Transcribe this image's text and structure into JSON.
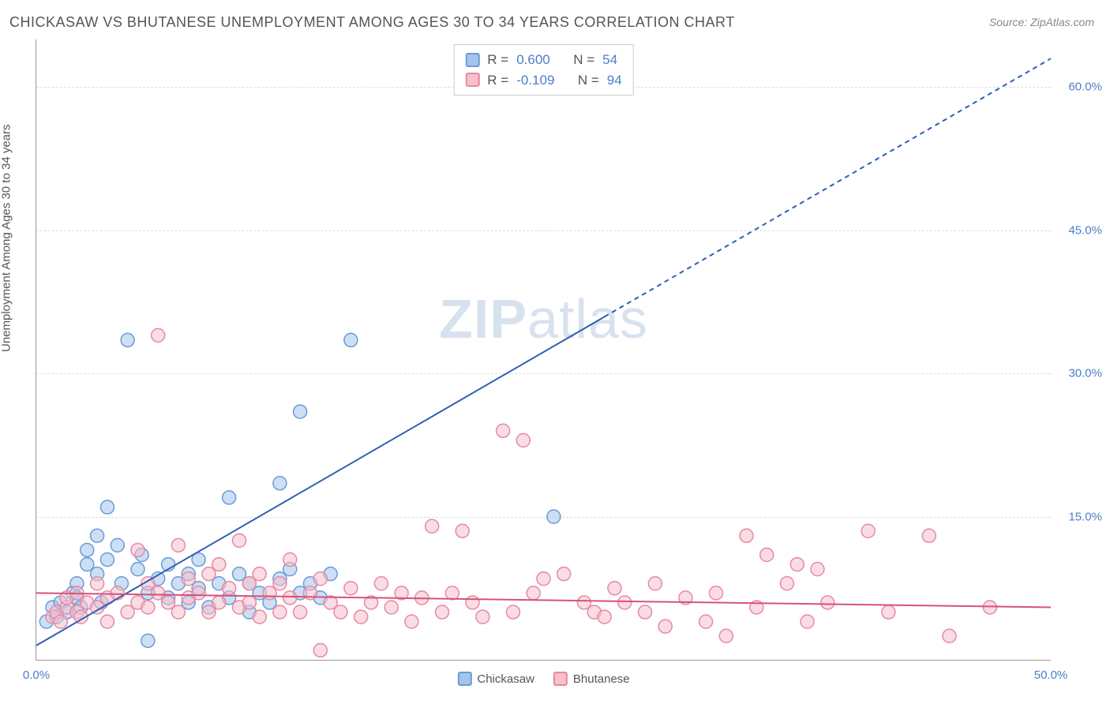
{
  "title": "CHICKASAW VS BHUTANESE UNEMPLOYMENT AMONG AGES 30 TO 34 YEARS CORRELATION CHART",
  "source": "Source: ZipAtlas.com",
  "ylabel": "Unemployment Among Ages 30 to 34 years",
  "watermark_zip": "ZIP",
  "watermark_atlas": "atlas",
  "chart": {
    "type": "scatter",
    "xlim": [
      0,
      50
    ],
    "ylim": [
      0,
      65
    ],
    "xticks": [
      {
        "v": 0,
        "l": "0.0%"
      },
      {
        "v": 50,
        "l": "50.0%"
      }
    ],
    "yticks": [
      {
        "v": 15,
        "l": "15.0%"
      },
      {
        "v": 30,
        "l": "30.0%"
      },
      {
        "v": 45,
        "l": "45.0%"
      },
      {
        "v": 60,
        "l": "60.0%"
      }
    ],
    "grid_color": "#dddddd",
    "marker_radius": 8.5,
    "marker_stroke_width": 1.5,
    "series": [
      {
        "name": "Chickasaw",
        "fill": "#a3c4ec",
        "stroke": "#6a9cd6",
        "fill_opacity": 0.55,
        "R": "0.600",
        "N": "54",
        "trend": {
          "x1": 0,
          "y1": 1.5,
          "x2": 50,
          "y2": 63,
          "solid_until_x": 28,
          "color": "#2e5fb3",
          "width": 2
        },
        "points": [
          [
            0.5,
            4
          ],
          [
            0.8,
            5.5
          ],
          [
            1,
            4.5
          ],
          [
            1.2,
            6
          ],
          [
            1.5,
            5
          ],
          [
            1.8,
            7
          ],
          [
            2,
            6.5
          ],
          [
            2,
            8
          ],
          [
            2.2,
            5.5
          ],
          [
            2.5,
            10
          ],
          [
            2.5,
            11.5
          ],
          [
            3,
            9
          ],
          [
            3,
            13
          ],
          [
            3.2,
            6
          ],
          [
            3.5,
            16
          ],
          [
            3.5,
            10.5
          ],
          [
            4,
            12
          ],
          [
            4.2,
            8
          ],
          [
            4.5,
            33.5
          ],
          [
            5,
            9.5
          ],
          [
            5.2,
            11
          ],
          [
            5.5,
            7
          ],
          [
            5.5,
            2
          ],
          [
            6,
            8.5
          ],
          [
            6.5,
            10
          ],
          [
            6.5,
            6.5
          ],
          [
            7,
            8
          ],
          [
            7.5,
            9
          ],
          [
            7.5,
            6
          ],
          [
            8,
            10.5
          ],
          [
            8,
            7.5
          ],
          [
            8.5,
            5.5
          ],
          [
            9,
            8
          ],
          [
            9.5,
            17
          ],
          [
            9.5,
            6.5
          ],
          [
            10,
            9
          ],
          [
            10.5,
            8
          ],
          [
            10.5,
            5
          ],
          [
            11,
            7
          ],
          [
            11.5,
            6
          ],
          [
            12,
            18.5
          ],
          [
            12,
            8.5
          ],
          [
            12.5,
            9.5
          ],
          [
            13,
            26
          ],
          [
            13,
            7
          ],
          [
            13.5,
            8
          ],
          [
            14,
            6.5
          ],
          [
            14.5,
            9
          ],
          [
            15.5,
            33.5
          ],
          [
            25.5,
            15
          ]
        ]
      },
      {
        "name": "Bhutanese",
        "fill": "#f6c0cd",
        "stroke": "#e889a2",
        "fill_opacity": 0.55,
        "R": "-0.109",
        "N": "94",
        "trend": {
          "x1": 0,
          "y1": 7,
          "x2": 50,
          "y2": 5.5,
          "solid_until_x": 50,
          "color": "#d6527b",
          "width": 2
        },
        "points": [
          [
            0.8,
            4.5
          ],
          [
            1,
            5
          ],
          [
            1.2,
            4
          ],
          [
            1.5,
            5.5
          ],
          [
            1.5,
            6.5
          ],
          [
            2,
            5
          ],
          [
            2,
            7
          ],
          [
            2.2,
            4.5
          ],
          [
            2.5,
            6
          ],
          [
            3,
            5.5
          ],
          [
            3,
            8
          ],
          [
            3.5,
            6.5
          ],
          [
            3.5,
            4
          ],
          [
            4,
            7
          ],
          [
            4.5,
            5
          ],
          [
            5,
            6
          ],
          [
            5,
            11.5
          ],
          [
            5.5,
            8
          ],
          [
            5.5,
            5.5
          ],
          [
            6,
            7
          ],
          [
            6,
            34
          ],
          [
            6.5,
            6
          ],
          [
            7,
            12
          ],
          [
            7,
            5
          ],
          [
            7.5,
            8.5
          ],
          [
            7.5,
            6.5
          ],
          [
            8,
            7
          ],
          [
            8.5,
            9
          ],
          [
            8.5,
            5
          ],
          [
            9,
            10
          ],
          [
            9,
            6
          ],
          [
            9.5,
            7.5
          ],
          [
            10,
            12.5
          ],
          [
            10,
            5.5
          ],
          [
            10.5,
            8
          ],
          [
            10.5,
            6
          ],
          [
            11,
            9
          ],
          [
            11,
            4.5
          ],
          [
            11.5,
            7
          ],
          [
            12,
            5
          ],
          [
            12,
            8
          ],
          [
            12.5,
            6.5
          ],
          [
            12.5,
            10.5
          ],
          [
            13,
            5
          ],
          [
            13.5,
            7
          ],
          [
            14,
            1
          ],
          [
            14,
            8.5
          ],
          [
            14.5,
            6
          ],
          [
            15,
            5
          ],
          [
            15.5,
            7.5
          ],
          [
            16,
            4.5
          ],
          [
            16.5,
            6
          ],
          [
            17,
            8
          ],
          [
            17.5,
            5.5
          ],
          [
            18,
            7
          ],
          [
            18.5,
            4
          ],
          [
            19,
            6.5
          ],
          [
            19.5,
            14
          ],
          [
            20,
            5
          ],
          [
            20.5,
            7
          ],
          [
            21,
            13.5
          ],
          [
            21.5,
            6
          ],
          [
            22,
            4.5
          ],
          [
            23,
            24
          ],
          [
            23.5,
            5
          ],
          [
            24,
            23
          ],
          [
            24.5,
            7
          ],
          [
            25,
            8.5
          ],
          [
            26,
            9
          ],
          [
            27,
            6
          ],
          [
            27.5,
            5
          ],
          [
            28,
            4.5
          ],
          [
            28.5,
            7.5
          ],
          [
            29,
            6
          ],
          [
            30,
            5
          ],
          [
            30.5,
            8
          ],
          [
            31,
            3.5
          ],
          [
            32,
            6.5
          ],
          [
            33,
            4
          ],
          [
            33.5,
            7
          ],
          [
            34,
            2.5
          ],
          [
            35,
            13
          ],
          [
            35.5,
            5.5
          ],
          [
            36,
            11
          ],
          [
            37,
            8
          ],
          [
            37.5,
            10
          ],
          [
            38,
            4
          ],
          [
            38.5,
            9.5
          ],
          [
            39,
            6
          ],
          [
            41,
            13.5
          ],
          [
            42,
            5
          ],
          [
            44,
            13
          ],
          [
            45,
            2.5
          ],
          [
            47,
            5.5
          ]
        ]
      }
    ]
  }
}
